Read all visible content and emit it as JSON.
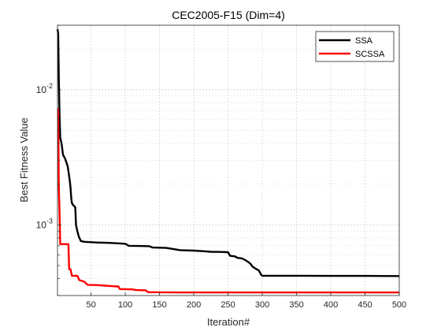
{
  "chart_data": {
    "type": "line",
    "title": "CEC2005-F15 (Dim=4)",
    "xlabel": "Iteration#",
    "ylabel": "Best Fitness Value",
    "xlim": [
      1,
      500
    ],
    "ylim": [
      0.0003,
      0.03
    ],
    "yscale": "log",
    "grid": true,
    "legend_position": "top-right",
    "x_ticks": [
      "50",
      "100",
      "150",
      "200",
      "250",
      "300",
      "350",
      "400",
      "450",
      "500"
    ],
    "y_ticks": [
      {
        "value": 0.001,
        "base": "10",
        "exp": "-3"
      },
      {
        "value": 0.01,
        "base": "10",
        "exp": "-2"
      }
    ],
    "series": [
      {
        "name": "SSA",
        "color": "#000000",
        "points": [
          [
            1,
            0.028
          ],
          [
            2,
            0.026
          ],
          [
            3,
            0.012
          ],
          [
            4,
            0.0065
          ],
          [
            5,
            0.0044
          ],
          [
            7,
            0.004
          ],
          [
            9,
            0.0033
          ],
          [
            12,
            0.0031
          ],
          [
            14,
            0.0029
          ],
          [
            16,
            0.0027
          ],
          [
            18,
            0.0023
          ],
          [
            19,
            0.0021
          ],
          [
            20,
            0.0019
          ],
          [
            21,
            0.0016
          ],
          [
            22,
            0.00145
          ],
          [
            24,
            0.0014
          ],
          [
            27,
            0.00135
          ],
          [
            28,
            0.001
          ],
          [
            30,
            0.0009
          ],
          [
            32,
            0.00082
          ],
          [
            35,
            0.00076
          ],
          [
            40,
            0.00075
          ],
          [
            50,
            0.000745
          ],
          [
            60,
            0.00074
          ],
          [
            70,
            0.000738
          ],
          [
            80,
            0.000735
          ],
          [
            90,
            0.00073
          ],
          [
            100,
            0.000725
          ],
          [
            105,
            0.0007
          ],
          [
            120,
            0.000698
          ],
          [
            135,
            0.000695
          ],
          [
            140,
            0.00068
          ],
          [
            160,
            0.000675
          ],
          [
            180,
            0.00065
          ],
          [
            200,
            0.000645
          ],
          [
            215,
            0.000638
          ],
          [
            225,
            0.000632
          ],
          [
            240,
            0.00063
          ],
          [
            250,
            0.000628
          ],
          [
            253,
            0.00059
          ],
          [
            260,
            0.000585
          ],
          [
            264,
            0.00057
          ],
          [
            270,
            0.000565
          ],
          [
            275,
            0.00055
          ],
          [
            282,
            0.00052
          ],
          [
            286,
            0.00049
          ],
          [
            290,
            0.000475
          ],
          [
            295,
            0.00046
          ],
          [
            298,
            0.00043
          ],
          [
            300,
            0.00042
          ],
          [
            320,
            0.00042
          ],
          [
            340,
            0.00042
          ],
          [
            400,
            0.000419
          ],
          [
            450,
            0.000419
          ],
          [
            500,
            0.000418
          ]
        ]
      },
      {
        "name": "SCSSA",
        "color": "#ff0000",
        "points": [
          [
            1,
            0.0072
          ],
          [
            2,
            0.0072
          ],
          [
            3,
            0.0019
          ],
          [
            4,
            0.00125
          ],
          [
            5,
            0.00072
          ],
          [
            10,
            0.00072
          ],
          [
            15,
            0.00072
          ],
          [
            17,
            0.00072
          ],
          [
            18,
            0.00047
          ],
          [
            20,
            0.00047
          ],
          [
            22,
            0.00042
          ],
          [
            30,
            0.00042
          ],
          [
            33,
            0.00039
          ],
          [
            40,
            0.00038
          ],
          [
            45,
            0.00036
          ],
          [
            60,
            0.000358
          ],
          [
            80,
            0.000352
          ],
          [
            90,
            0.00035
          ],
          [
            92,
            0.000335
          ],
          [
            110,
            0.000333
          ],
          [
            115,
            0.00033
          ],
          [
            130,
            0.000328
          ],
          [
            133,
            0.000318
          ],
          [
            150,
            0.000317
          ],
          [
            175,
            0.000316
          ],
          [
            200,
            0.000316
          ],
          [
            300,
            0.000316
          ],
          [
            400,
            0.000316
          ],
          [
            500,
            0.000316
          ]
        ]
      }
    ]
  }
}
